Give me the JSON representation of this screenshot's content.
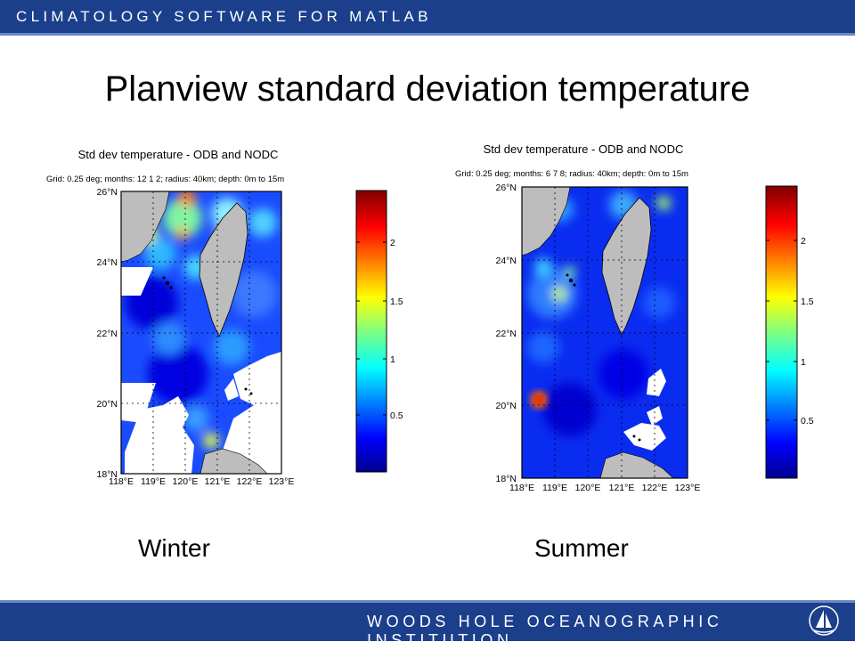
{
  "header": {
    "brand": "CLIMATOLOGY SOFTWARE FOR MATLAB"
  },
  "slide": {
    "title": "Planview standard deviation temperature"
  },
  "footer": {
    "institution": "WOODS HOLE OCEANOGRAPHIC INSTITUTION",
    "logo_icon": "whoi-sail-logo-icon"
  },
  "panels": [
    {
      "caption": "Winter",
      "title": "Std dev temperature - ODB and NODC",
      "subtitle": "Grid: 0.25 deg; months: 12 1 2; radius: 40km; depth: 0m to 15m",
      "lat_labels": [
        "26°N",
        "24°N",
        "22°N",
        "20°N",
        "18°N"
      ],
      "lon_labels": [
        "118°E",
        "119°E",
        "120°E",
        "121°E",
        "122°E",
        "123°E"
      ],
      "colorbar_ticks": [
        "2",
        "1.5",
        "1",
        "0.5"
      ]
    },
    {
      "caption": "Summer",
      "title": "Std dev temperature - ODB and NODC",
      "subtitle": "Grid: 0.25 deg; months: 6 7 8; radius: 40km; depth: 0m to 15m",
      "lat_labels": [
        "26°N",
        "24°N",
        "22°N",
        "20°N",
        "18°N"
      ],
      "lon_labels": [
        "118°E",
        "119°E",
        "120°E",
        "121°E",
        "122°E",
        "123°E"
      ],
      "colorbar_ticks": [
        "2",
        "1.5",
        "1",
        "0.5"
      ]
    }
  ],
  "chart_data": [
    {
      "type": "heatmap",
      "title": "Std dev temperature - ODB and NODC",
      "season": "Winter",
      "months": [
        12,
        1,
        2
      ],
      "grid_deg": 0.25,
      "radius_km": 40,
      "depth_m": [
        0,
        15
      ],
      "lon_range": [
        118,
        123
      ],
      "lat_range": [
        18,
        26
      ],
      "colorbar_range": [
        0,
        2.4
      ],
      "colorbar_ticks": [
        0.5,
        1,
        1.5,
        2
      ],
      "colormap": "jet"
    },
    {
      "type": "heatmap",
      "title": "Std dev temperature - ODB and NODC",
      "season": "Summer",
      "months": [
        6,
        7,
        8
      ],
      "grid_deg": 0.25,
      "radius_km": 40,
      "depth_m": [
        0,
        15
      ],
      "lon_range": [
        118,
        123
      ],
      "lat_range": [
        18,
        26
      ],
      "colorbar_range": [
        0,
        2.4
      ],
      "colorbar_ticks": [
        0.5,
        1,
        1.5,
        2
      ],
      "colormap": "jet"
    }
  ]
}
